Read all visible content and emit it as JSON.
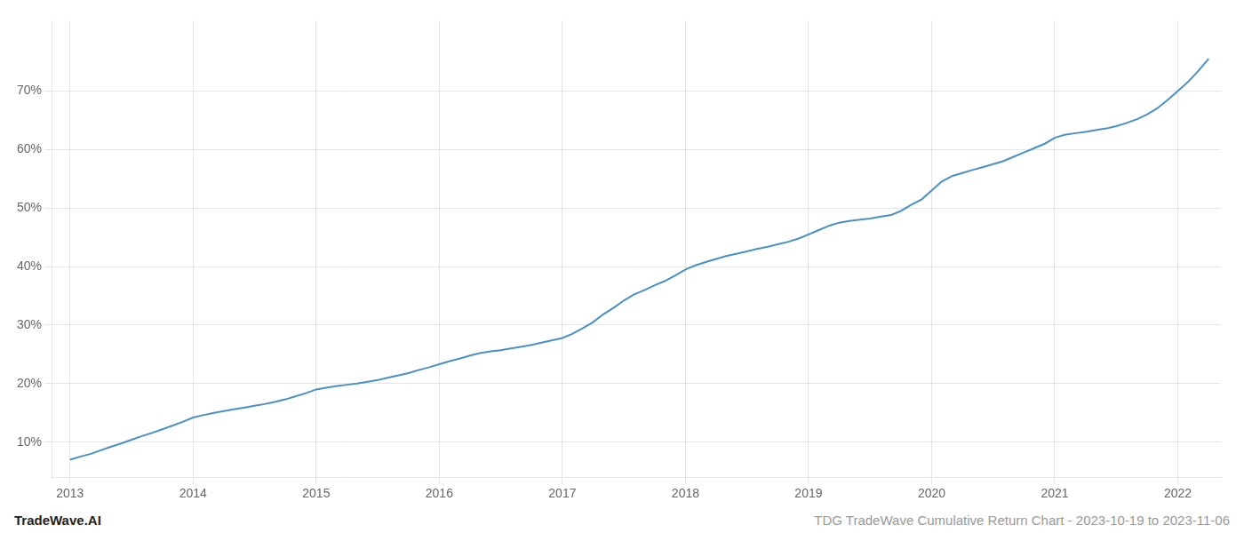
{
  "chart_data": {
    "type": "line",
    "x": [
      2013.0,
      2013.08,
      2013.17,
      2013.25,
      2013.33,
      2013.42,
      2013.5,
      2013.58,
      2013.67,
      2013.75,
      2013.83,
      2013.92,
      2014.0,
      2014.08,
      2014.17,
      2014.25,
      2014.33,
      2014.42,
      2014.5,
      2014.58,
      2014.67,
      2014.75,
      2014.83,
      2014.92,
      2015.0,
      2015.08,
      2015.17,
      2015.25,
      2015.33,
      2015.42,
      2015.5,
      2015.58,
      2015.67,
      2015.75,
      2015.83,
      2015.92,
      2016.0,
      2016.08,
      2016.17,
      2016.25,
      2016.33,
      2016.42,
      2016.5,
      2016.58,
      2016.67,
      2016.75,
      2016.83,
      2016.92,
      2017.0,
      2017.08,
      2017.17,
      2017.25,
      2017.33,
      2017.42,
      2017.5,
      2017.58,
      2017.67,
      2017.75,
      2017.83,
      2017.92,
      2018.0,
      2018.08,
      2018.17,
      2018.25,
      2018.33,
      2018.42,
      2018.5,
      2018.58,
      2018.67,
      2018.75,
      2018.83,
      2018.92,
      2019.0,
      2019.08,
      2019.17,
      2019.25,
      2019.33,
      2019.42,
      2019.5,
      2019.58,
      2019.67,
      2019.75,
      2019.83,
      2019.92,
      2020.0,
      2020.08,
      2020.17,
      2020.25,
      2020.33,
      2020.42,
      2020.5,
      2020.58,
      2020.67,
      2020.75,
      2020.83,
      2020.92,
      2021.0,
      2021.08,
      2021.17,
      2021.25,
      2021.33,
      2021.42,
      2021.5,
      2021.58,
      2021.67,
      2021.75,
      2021.83,
      2021.92,
      2022.0,
      2022.08,
      2022.17,
      2022.25
    ],
    "values": [
      7.0,
      7.5,
      8.0,
      8.6,
      9.2,
      9.8,
      10.4,
      11.0,
      11.6,
      12.2,
      12.8,
      13.5,
      14.2,
      14.6,
      15.0,
      15.3,
      15.6,
      15.9,
      16.2,
      16.5,
      16.9,
      17.3,
      17.8,
      18.4,
      19.0,
      19.3,
      19.6,
      19.8,
      20.0,
      20.3,
      20.6,
      21.0,
      21.4,
      21.8,
      22.3,
      22.8,
      23.3,
      23.8,
      24.3,
      24.8,
      25.2,
      25.5,
      25.7,
      26.0,
      26.3,
      26.6,
      27.0,
      27.4,
      27.8,
      28.5,
      29.5,
      30.5,
      31.8,
      33.0,
      34.2,
      35.2,
      36.0,
      36.8,
      37.5,
      38.5,
      39.5,
      40.2,
      40.8,
      41.3,
      41.8,
      42.2,
      42.6,
      43.0,
      43.4,
      43.8,
      44.2,
      44.8,
      45.5,
      46.2,
      47.0,
      47.5,
      47.8,
      48.0,
      48.2,
      48.5,
      48.8,
      49.5,
      50.5,
      51.5,
      53.0,
      54.5,
      55.5,
      56.0,
      56.5,
      57.0,
      57.5,
      58.0,
      58.8,
      59.5,
      60.2,
      61.0,
      62.0,
      62.5,
      62.8,
      63.0,
      63.3,
      63.6,
      64.0,
      64.5,
      65.2,
      66.0,
      67.0,
      68.5,
      70.0,
      71.5,
      73.5,
      75.5
    ],
    "color": "#4a90c4",
    "xlim": [
      2012.85,
      2022.35
    ],
    "xticks": [
      2013,
      2014,
      2015,
      2016,
      2017,
      2018,
      2019,
      2020,
      2021,
      2022
    ],
    "ylim": [
      4,
      82
    ],
    "yticks": [
      {
        "value": 10,
        "label": "10%"
      },
      {
        "value": 20,
        "label": "20%"
      },
      {
        "value": 30,
        "label": "30%"
      },
      {
        "value": 40,
        "label": "40%"
      },
      {
        "value": 50,
        "label": "50%"
      },
      {
        "value": 60,
        "label": "60%"
      },
      {
        "value": 70,
        "label": "70%"
      }
    ],
    "grid": true,
    "annotations": [
      {
        "text": "TradeWave.AI",
        "color": "#222222"
      },
      {
        "text": "TDG TradeWave Cumulative Return Chart - 2023-10-19 to 2023-11-06",
        "color": "#999999"
      }
    ]
  }
}
